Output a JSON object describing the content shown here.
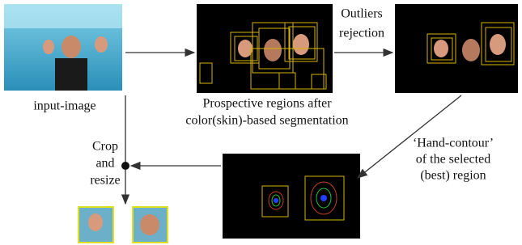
{
  "nodes": [
    {
      "label": [
        "input-image"
      ]
    },
    {
      "label": [
        "Prospective regions after",
        "color(skin)-based segmentation"
      ]
    }
  ],
  "edges": [
    {
      "label": [
        "Outliers",
        "rejection"
      ]
    },
    {
      "label": [
        "‘Hand-contour’",
        "of the selected",
        "(best) region"
      ]
    },
    {
      "label": [
        "Crop",
        "and",
        "resize"
      ]
    }
  ]
}
